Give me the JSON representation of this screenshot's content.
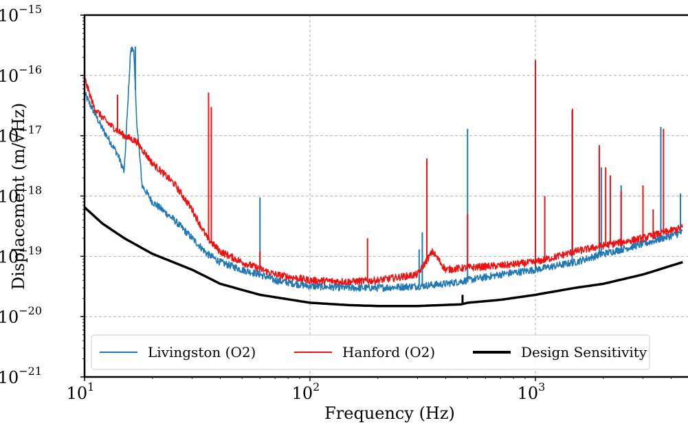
{
  "chart_data": {
    "type": "line",
    "xlabel": "Frequency (Hz)",
    "ylabel": "Displacement (m/√Hz)",
    "xscale": "log",
    "yscale": "log",
    "xlim": [
      10,
      4500
    ],
    "ylim": [
      1e-21,
      1e-15
    ],
    "grid": true,
    "legend_position": "bottom",
    "x_ticks": [
      {
        "value": 10,
        "base": "10",
        "exp": "1"
      },
      {
        "value": 100,
        "base": "10",
        "exp": "2"
      },
      {
        "value": 1000,
        "base": "10",
        "exp": "3"
      }
    ],
    "y_ticks": [
      {
        "value": 1e-15,
        "base": "10",
        "exp": "−15"
      },
      {
        "value": 1e-16,
        "base": "10",
        "exp": "−16"
      },
      {
        "value": 1e-17,
        "base": "10",
        "exp": "−17"
      },
      {
        "value": 1e-18,
        "base": "10",
        "exp": "−18"
      },
      {
        "value": 1e-19,
        "base": "10",
        "exp": "−19"
      },
      {
        "value": 1e-20,
        "base": "10",
        "exp": "−20"
      },
      {
        "value": 1e-21,
        "base": "10",
        "exp": "−21"
      }
    ],
    "series": [
      {
        "name": "Livingston (O2)",
        "color": "#1f77b4",
        "points": [
          [
            10,
            5e-17
          ],
          [
            11,
            2.5e-17
          ],
          [
            12,
            1.3e-17
          ],
          [
            13,
            8e-18
          ],
          [
            14,
            5e-18
          ],
          [
            15,
            2.5e-18
          ],
          [
            16,
            2.5e-16
          ],
          [
            16.5,
            3e-16
          ],
          [
            17,
            2e-17
          ],
          [
            18,
            1.5e-18
          ],
          [
            20,
            8e-19
          ],
          [
            22,
            6e-19
          ],
          [
            25,
            4e-19
          ],
          [
            30,
            2e-19
          ],
          [
            35,
            1.1e-19
          ],
          [
            40,
            8e-20
          ],
          [
            50,
            6e-20
          ],
          [
            60,
            5e-20
          ],
          [
            70,
            4e-20
          ],
          [
            100,
            3.2e-20
          ],
          [
            150,
            3e-20
          ],
          [
            200,
            3e-20
          ],
          [
            300,
            3.2e-20
          ],
          [
            400,
            3.5e-20
          ],
          [
            500,
            4e-20
          ],
          [
            700,
            5e-20
          ],
          [
            1000,
            6e-20
          ],
          [
            1500,
            8e-20
          ],
          [
            2000,
            1.1e-19
          ],
          [
            3000,
            1.6e-19
          ],
          [
            4500,
            2.5e-19
          ]
        ],
        "peaks": [
          [
            16.3,
            2.5e-16
          ],
          [
            16.8,
            3e-16
          ],
          [
            60,
            9.5e-19
          ],
          [
            305,
            1.3e-19
          ],
          [
            315,
            2.5e-19
          ],
          [
            500,
            1.3e-17
          ],
          [
            1000,
            1.5e-16
          ],
          [
            1455,
            2.6e-17
          ],
          [
            1920,
            6e-18
          ],
          [
            1960,
            3e-18
          ],
          [
            2400,
            1.5e-18
          ],
          [
            3600,
            1.4e-17
          ],
          [
            4400,
            1.1e-18
          ]
        ]
      },
      {
        "name": "Hanford (O2)",
        "color": "#ee1111",
        "points": [
          [
            10,
            9e-17
          ],
          [
            11,
            3e-17
          ],
          [
            12,
            2e-17
          ],
          [
            13,
            1.5e-17
          ],
          [
            15,
            1e-17
          ],
          [
            17,
            8e-18
          ],
          [
            20,
            3.5e-18
          ],
          [
            25,
            1.6e-18
          ],
          [
            30,
            6e-19
          ],
          [
            35,
            2e-19
          ],
          [
            40,
            1.2e-19
          ],
          [
            50,
            8e-20
          ],
          [
            70,
            5e-20
          ],
          [
            100,
            4e-20
          ],
          [
            150,
            3.8e-20
          ],
          [
            200,
            4e-20
          ],
          [
            300,
            5e-20
          ],
          [
            350,
            1.2e-19
          ],
          [
            400,
            6e-20
          ],
          [
            500,
            6.5e-20
          ],
          [
            700,
            7e-20
          ],
          [
            1000,
            8e-20
          ],
          [
            1500,
            1.2e-19
          ],
          [
            2000,
            1.5e-19
          ],
          [
            3000,
            2e-19
          ],
          [
            4500,
            3e-19
          ]
        ],
        "peaks": [
          [
            14,
            4.8e-17
          ],
          [
            35.5,
            5.2e-17
          ],
          [
            36.5,
            3e-17
          ],
          [
            60,
            1.2e-19
          ],
          [
            180,
            2e-19
          ],
          [
            330,
            4.2e-18
          ],
          [
            500,
            5e-19
          ],
          [
            1000,
            1.8e-16
          ],
          [
            1100,
            1e-18
          ],
          [
            1460,
            2.8e-17
          ],
          [
            1920,
            7e-18
          ],
          [
            2050,
            3e-18
          ],
          [
            2150,
            2.2e-18
          ],
          [
            2400,
            1.2e-18
          ],
          [
            3000,
            1.5e-18
          ],
          [
            3330,
            6e-19
          ],
          [
            3700,
            1.3e-17
          ]
        ]
      },
      {
        "name": "Design Sensitivity",
        "color": "#000000",
        "points": [
          [
            10,
            6.5e-19
          ],
          [
            12,
            3.5e-19
          ],
          [
            15,
            2e-19
          ],
          [
            20,
            1.1e-19
          ],
          [
            30,
            6e-20
          ],
          [
            40,
            3.5e-20
          ],
          [
            60,
            2.3e-20
          ],
          [
            100,
            1.7e-20
          ],
          [
            150,
            1.55e-20
          ],
          [
            200,
            1.5e-20
          ],
          [
            300,
            1.5e-20
          ],
          [
            470,
            1.6e-20
          ],
          [
            500,
            1.7e-20
          ],
          [
            700,
            1.9e-20
          ],
          [
            1000,
            2.3e-20
          ],
          [
            1500,
            3e-20
          ],
          [
            2000,
            3.5e-20
          ],
          [
            3000,
            5e-20
          ],
          [
            4500,
            8e-20
          ]
        ],
        "peaks": [
          [
            475,
            2.3e-20
          ]
        ]
      }
    ]
  }
}
